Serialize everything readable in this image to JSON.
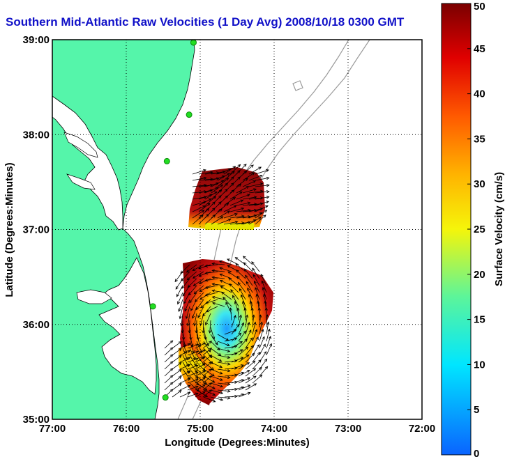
{
  "title": "Southern Mid-Atlantic Raw Velocities (1 Day Avg) 2008/10/18 0300 GMT",
  "colors": {
    "land": "#55f5aa",
    "coast": "#000000",
    "bathymetry": "#9a9a9a",
    "grid": "#000000",
    "station": "#22dd22",
    "arrow": "#000000",
    "title": "#1010c8"
  },
  "chart_data": {
    "type": "heatmap",
    "xlabel": "Longitude (Degrees:Minutes)",
    "ylabel": "Latitude (Degrees:Minutes)",
    "xlim": [
      -77,
      -72
    ],
    "ylim": [
      35,
      39
    ],
    "x_ticks": [
      {
        "value": -77,
        "label": "77:00"
      },
      {
        "value": -76,
        "label": "76:00"
      },
      {
        "value": -75,
        "label": "75:00"
      },
      {
        "value": -74,
        "label": "74:00"
      },
      {
        "value": -73,
        "label": "73:00"
      },
      {
        "value": -72,
        "label": "72:00"
      }
    ],
    "y_ticks": [
      {
        "value": 35,
        "label": "35:00"
      },
      {
        "value": 36,
        "label": "36:00"
      },
      {
        "value": 37,
        "label": "37:00"
      },
      {
        "value": 38,
        "label": "38:00"
      },
      {
        "value": 39,
        "label": "39:00"
      }
    ],
    "grid": true,
    "colorbar": {
      "label": "Surface Velocity (cm/s)",
      "min": 0,
      "max": 50,
      "ticks": [
        0,
        5,
        10,
        15,
        20,
        25,
        30,
        35,
        40,
        45,
        50
      ]
    },
    "stations": [
      {
        "lon": -75.09,
        "lat": 38.97
      },
      {
        "lon": -75.15,
        "lat": 38.21
      },
      {
        "lon": -75.45,
        "lat": 37.72
      },
      {
        "lon": -75.64,
        "lat": 36.19
      },
      {
        "lon": -75.47,
        "lat": 35.23
      }
    ]
  }
}
